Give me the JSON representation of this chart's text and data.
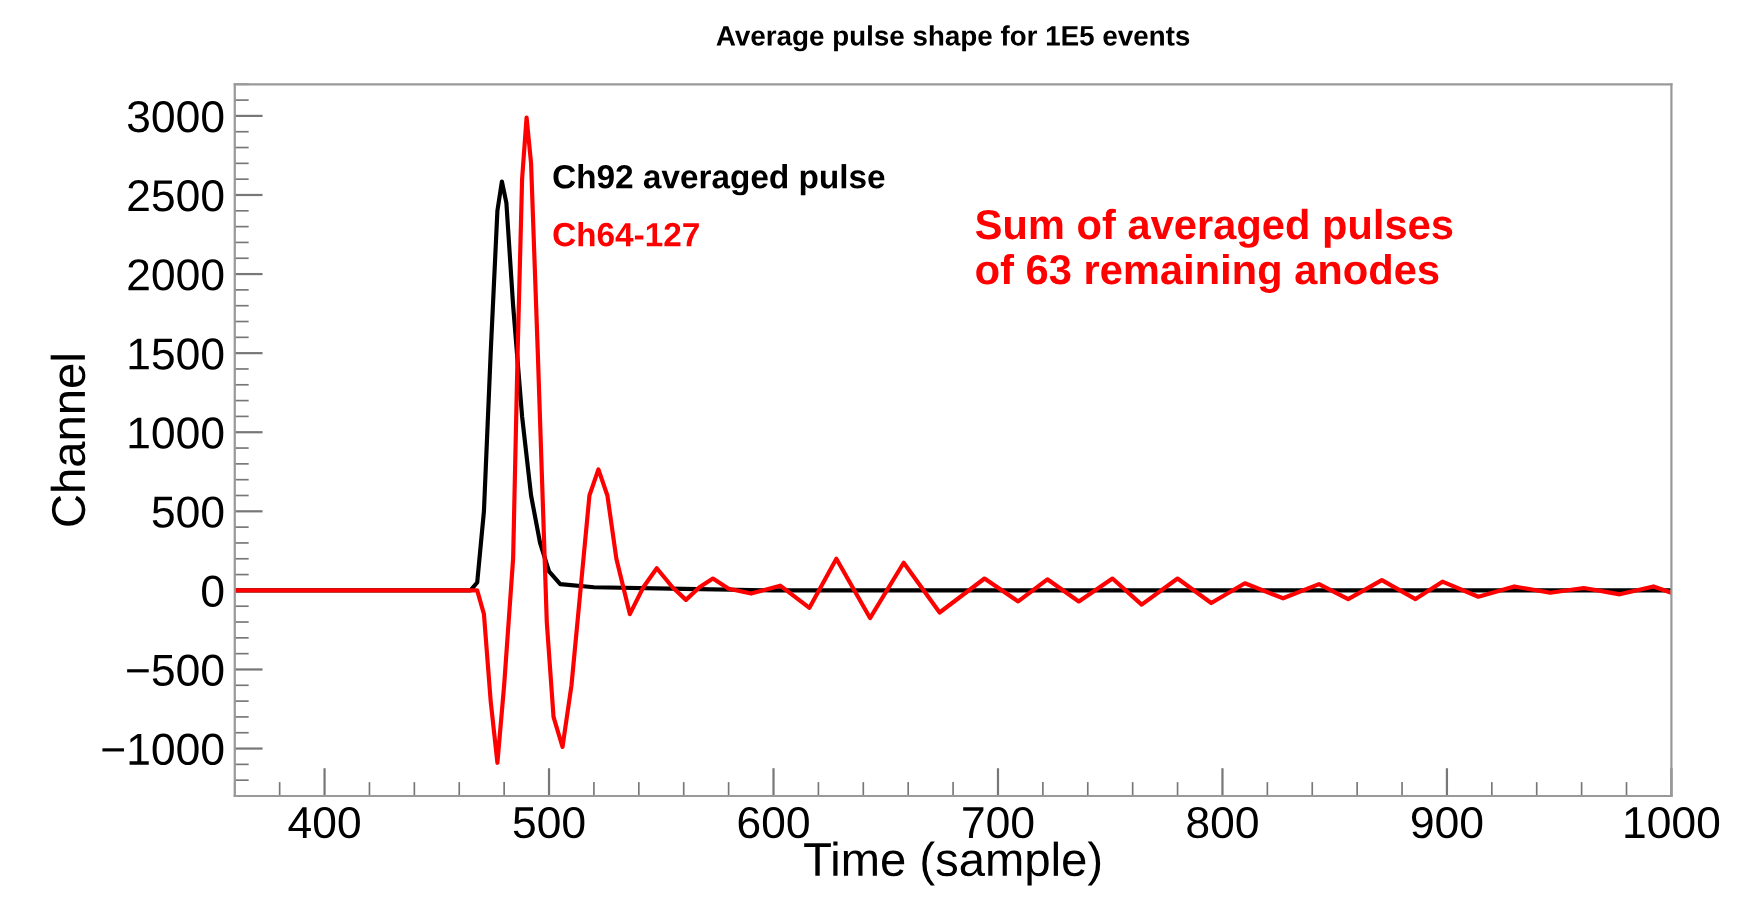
{
  "chart_data": {
    "type": "line",
    "title": "Average pulse shape for 1E5 events",
    "xlabel": "Time (sample)",
    "ylabel": "Channel",
    "xlim": [
      360,
      1000
    ],
    "xticks": [
      400,
      500,
      600,
      700,
      800,
      900,
      1000
    ],
    "ylim": [
      -1300,
      3200
    ],
    "yticks": [
      -1000,
      -500,
      0,
      500,
      1000,
      1500,
      2000,
      2500,
      3000
    ],
    "grid": false,
    "legend": "top",
    "marker": "none",
    "line_style": "solid",
    "annotations": [
      "Sum of averaged pulses\nof 63 remaining anodes"
    ],
    "series": [
      {
        "name": "Ch92 averaged pulse",
        "color": "#000000",
        "x": [
          360,
          465,
          468,
          471,
          474,
          477,
          479,
          481,
          484,
          488,
          492,
          496,
          500,
          505,
          520,
          560,
          600,
          1000
        ],
        "values": [
          0,
          0,
          50,
          500,
          1500,
          2400,
          2585,
          2450,
          1800,
          1100,
          600,
          300,
          120,
          40,
          20,
          10,
          0,
          0
        ]
      },
      {
        "name": "Ch64-127",
        "color": "#ff0000",
        "x": [
          360,
          468,
          471,
          474,
          477,
          480,
          484,
          486,
          488,
          490,
          492,
          495,
          499,
          502,
          506,
          510,
          514,
          518,
          522,
          526,
          530,
          536,
          542,
          548,
          555,
          561,
          567,
          573,
          580,
          590,
          603,
          616,
          628,
          643,
          658,
          674,
          694,
          709,
          722,
          736,
          751,
          764,
          780,
          795,
          810,
          827,
          843,
          856,
          871,
          886,
          898,
          914,
          930,
          946,
          961,
          977,
          992,
          1000
        ],
        "values": [
          0,
          0,
          -150,
          -700,
          -1090,
          -600,
          200,
          1500,
          2600,
          2990,
          2700,
          1500,
          -200,
          -800,
          -990,
          -600,
          0,
          600,
          765,
          600,
          200,
          -150,
          20,
          140,
          20,
          -60,
          20,
          75,
          10,
          -20,
          30,
          -110,
          200,
          -175,
          175,
          -140,
          75,
          -70,
          70,
          -70,
          75,
          -90,
          75,
          -80,
          45,
          -50,
          40,
          -55,
          65,
          -55,
          55,
          -40,
          25,
          -15,
          15,
          -25,
          25,
          -15
        ]
      }
    ]
  }
}
